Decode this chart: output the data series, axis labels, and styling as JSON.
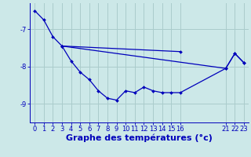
{
  "background_color": "#cce8e8",
  "grid_color": "#aacccc",
  "line_color": "#0000bb",
  "xlabel": "Graphe des températures (°c)",
  "xlabel_fontsize": 8,
  "tick_fontsize": 6,
  "ylim": [
    -9.5,
    -6.3
  ],
  "xlim": [
    -0.5,
    23.5
  ],
  "yticks": [
    -9,
    -8,
    -7
  ],
  "xticks": [
    0,
    1,
    2,
    3,
    4,
    5,
    6,
    7,
    8,
    9,
    10,
    11,
    12,
    13,
    14,
    15,
    16,
    21,
    22,
    23
  ],
  "series": [
    {
      "x": [
        0,
        1,
        2,
        3
      ],
      "y": [
        -6.5,
        -6.75,
        -7.2,
        -7.45
      ]
    },
    {
      "x": [
        3,
        4,
        5,
        6,
        7,
        8,
        9,
        10,
        11,
        12,
        13,
        14,
        15,
        16,
        21,
        22,
        23
      ],
      "y": [
        -7.45,
        -7.85,
        -8.15,
        -8.35,
        -8.65,
        -8.85,
        -8.9,
        -8.65,
        -8.7,
        -8.55,
        -8.65,
        -8.7,
        -8.7,
        -8.7,
        -8.05,
        -7.65,
        -7.9
      ]
    },
    {
      "x": [
        3,
        21,
        22,
        23
      ],
      "y": [
        -7.45,
        -8.05,
        -7.65,
        -7.9
      ]
    },
    {
      "x": [
        3,
        16
      ],
      "y": [
        -7.45,
        -7.6
      ]
    }
  ]
}
